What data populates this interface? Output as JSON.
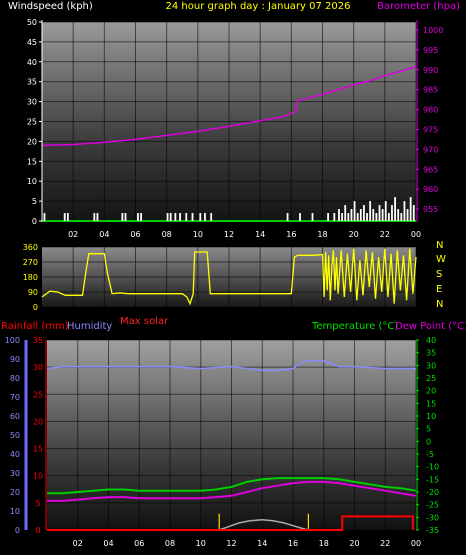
{
  "header": {
    "left_label": "Windspeed (kph)",
    "center_title": "24 hour graph day : January 07 2026",
    "right_label": "Barometer (hpa)"
  },
  "direction_letters": [
    "N",
    "W",
    "S",
    "E",
    "N"
  ],
  "bottom_header": {
    "rainfall": "Rainfall (mm)",
    "humidity": "Humidity",
    "max_solar": "Max solar",
    "temperature": "Temperature (°C)",
    "dew_point": "Dew Point (°C)"
  },
  "colors": {
    "wind": "#ffffff",
    "barometer": "#dd00dd",
    "direction": "#ffff00",
    "rain": "#ff0000",
    "humidity": "#8a8aff",
    "temperature": "#00cc00",
    "dewpoint": "#dd00dd",
    "solar": "#aaaaaa"
  },
  "chart_data": [
    {
      "type": "line",
      "id": "wind_baro",
      "xlabel": "",
      "x_ticks": [
        "02",
        "04",
        "06",
        "08",
        "10",
        "12",
        "14",
        "16",
        "18",
        "20",
        "22",
        "00"
      ],
      "xlim": [
        0,
        24
      ],
      "ylabel_left": "Windspeed (kph)",
      "ylim_left": [
        0,
        50
      ],
      "yticks_left": [
        0,
        5,
        10,
        15,
        20,
        25,
        30,
        35,
        40,
        45,
        50
      ],
      "ylabel_right": "Barometer (hpa)",
      "ylim_right": [
        952,
        1002
      ],
      "yticks_right": [
        955,
        960,
        965,
        970,
        975,
        980,
        985,
        990,
        995,
        1000
      ],
      "series": [
        {
          "name": "Windspeed (kph)",
          "kind": "bars",
          "x": [
            0.1,
            1.4,
            1.6,
            3.3,
            3.5,
            5.1,
            5.3,
            6.1,
            6.3,
            8.0,
            8.2,
            8.5,
            8.8,
            9.2,
            9.6,
            10.1,
            10.4,
            10.8,
            15.7,
            16.5,
            17.3,
            18.3,
            18.7,
            19.0,
            19.2,
            19.4,
            19.6,
            19.8,
            20.0,
            20.2,
            20.4,
            20.6,
            20.8,
            21.0,
            21.2,
            21.4,
            21.6,
            21.8,
            22.0,
            22.2,
            22.4,
            22.6,
            22.8,
            23.0,
            23.2,
            23.4,
            23.6,
            23.8
          ],
          "values": [
            2,
            2,
            2,
            2,
            2,
            2,
            2,
            2,
            2,
            2,
            2,
            2,
            2,
            2,
            2,
            2,
            2,
            2,
            2,
            2,
            2,
            2,
            2,
            3,
            2,
            4,
            2,
            3,
            5,
            2,
            3,
            4,
            2,
            5,
            3,
            2,
            4,
            3,
            5,
            2,
            4,
            6,
            3,
            2,
            5,
            3,
            6,
            4
          ]
        },
        {
          "name": "Barometer (hpa)",
          "kind": "line",
          "x": [
            0,
            2,
            4,
            6,
            8,
            10,
            12,
            14,
            15.5,
            16.3,
            16.4,
            18,
            20,
            21,
            22,
            23,
            24
          ],
          "values": [
            971.0,
            971.2,
            971.8,
            972.5,
            973.5,
            974.5,
            975.8,
            977.2,
            978.2,
            979.5,
            982.2,
            983.8,
            986.2,
            987.2,
            988.5,
            989.6,
            990.8
          ]
        }
      ]
    },
    {
      "type": "line",
      "id": "wind_direction",
      "xlabel": "",
      "x_ticks": [
        "02",
        "04",
        "06",
        "08",
        "10",
        "12",
        "14",
        "16",
        "18",
        "20",
        "22",
        "00"
      ],
      "xlim": [
        0,
        24
      ],
      "ylim": [
        0,
        360
      ],
      "yticks": [
        0,
        90,
        180,
        270,
        360
      ],
      "series": [
        {
          "name": "Wind direction",
          "x": [
            0,
            0.5,
            1.0,
            1.5,
            2.0,
            2.6,
            2.8,
            3.0,
            3.5,
            4.0,
            4.2,
            4.5,
            5.0,
            5.5,
            6.0,
            6.5,
            7.0,
            7.5,
            8.0,
            8.5,
            9.0,
            9.3,
            9.5,
            9.7,
            9.8,
            10.0,
            10.6,
            10.8,
            11.0,
            11.5,
            12.0,
            13.0,
            14.0,
            15.0,
            16.0,
            16.2,
            16.4,
            17.0,
            17.5,
            18.0,
            18.1,
            18.2,
            18.3,
            18.4,
            18.5,
            18.6,
            18.7,
            18.8,
            18.9,
            19.0,
            19.2,
            19.4,
            19.6,
            19.8,
            20.0,
            20.2,
            20.4,
            20.6,
            20.8,
            21.0,
            21.2,
            21.4,
            21.6,
            21.8,
            22.0,
            22.2,
            22.4,
            22.6,
            22.8,
            23.0,
            23.2,
            23.4,
            23.6,
            23.8,
            24.0
          ],
          "values": [
            60,
            95,
            90,
            70,
            70,
            70,
            200,
            320,
            320,
            320,
            200,
            80,
            85,
            80,
            80,
            80,
            80,
            80,
            80,
            80,
            80,
            60,
            20,
            80,
            330,
            330,
            330,
            80,
            80,
            80,
            80,
            80,
            80,
            80,
            80,
            300,
            310,
            310,
            310,
            315,
            60,
            330,
            100,
            310,
            40,
            250,
            340,
            100,
            300,
            80,
            340,
            60,
            320,
            90,
            350,
            40,
            280,
            70,
            340,
            120,
            330,
            50,
            300,
            90,
            350,
            60,
            320,
            20,
            340,
            100,
            310,
            40,
            350,
            80,
            300
          ]
        }
      ]
    },
    {
      "type": "line",
      "id": "temp_hum_rain",
      "xlabel": "",
      "x_ticks": [
        "02",
        "04",
        "06",
        "08",
        "10",
        "12",
        "14",
        "16",
        "18",
        "20",
        "22",
        "00"
      ],
      "xlim": [
        0,
        24
      ],
      "y_axes": [
        {
          "name": "Humidity",
          "ylim": [
            0,
            100
          ],
          "yticks": [
            0,
            10,
            20,
            30,
            40,
            50,
            60,
            70,
            80,
            90,
            100
          ]
        },
        {
          "name": "Rainfall (mm)",
          "ylim": [
            0,
            35
          ],
          "yticks": [
            0,
            5,
            10,
            15,
            20,
            25,
            30,
            35
          ]
        },
        {
          "name": "Temperature (°C)",
          "ylim": [
            -35,
            40
          ],
          "yticks": [
            -35,
            -30,
            -25,
            -20,
            -15,
            -10,
            -5,
            0,
            5,
            10,
            15,
            20,
            25,
            30,
            35,
            40
          ]
        }
      ],
      "series": [
        {
          "name": "Humidity",
          "axis": "Humidity",
          "x": [
            0,
            1,
            2,
            4,
            6,
            8,
            10,
            12,
            14,
            15,
            16,
            16.5,
            17,
            18,
            19,
            20,
            22,
            24
          ],
          "values": [
            85,
            86,
            86,
            86,
            86,
            86,
            85,
            86,
            84,
            84,
            85,
            88,
            89,
            89,
            86,
            86,
            85,
            85
          ]
        },
        {
          "name": "Temperature (°C)",
          "axis": "Temperature (°C)",
          "x": [
            0,
            1,
            2,
            3,
            4,
            5,
            6,
            7,
            8,
            9,
            10,
            11,
            12,
            13,
            14,
            15,
            16,
            17,
            18,
            19,
            20,
            21,
            22,
            23,
            24
          ],
          "values": [
            -20.5,
            -20.5,
            -20.0,
            -19.5,
            -19.0,
            -19.0,
            -19.5,
            -19.5,
            -19.5,
            -19.5,
            -19.5,
            -19.0,
            -18.0,
            -16.0,
            -15.0,
            -14.5,
            -14.5,
            -14.5,
            -14.5,
            -15.0,
            -16.0,
            -17.0,
            -18.0,
            -18.5,
            -19.5
          ]
        },
        {
          "name": "Dew Point (°C)",
          "axis": "Temperature (°C)",
          "x": [
            0,
            1,
            2,
            3,
            4,
            5,
            6,
            7,
            8,
            9,
            10,
            11,
            12,
            13,
            14,
            15,
            16,
            17,
            18,
            19,
            20,
            21,
            22,
            23,
            24
          ],
          "values": [
            -23.5,
            -23.5,
            -23.0,
            -22.5,
            -22.0,
            -22.0,
            -22.5,
            -22.5,
            -22.5,
            -22.5,
            -22.5,
            -22.0,
            -21.5,
            -20.0,
            -18.5,
            -17.5,
            -16.5,
            -16.0,
            -16.0,
            -16.5,
            -17.5,
            -18.5,
            -19.5,
            -20.5,
            -21.5
          ]
        },
        {
          "name": "Rainfall (mm)",
          "axis": "Rainfall (mm)",
          "x": [
            0,
            19.2,
            19.2,
            23.8,
            23.8
          ],
          "values": [
            0,
            0,
            2.5,
            2.5,
            0
          ]
        },
        {
          "name": "Max solar",
          "axis": "Rainfall (mm)",
          "x": [
            11.2,
            11.8,
            12.5,
            13.2,
            14.0,
            14.7,
            15.4,
            16.0,
            16.6,
            17.0
          ],
          "values": [
            0,
            0.6,
            1.3,
            1.7,
            1.9,
            1.7,
            1.3,
            0.8,
            0.3,
            0
          ]
        },
        {
          "name": "Solar markers",
          "axis": "Rainfall (mm)",
          "kind": "marks",
          "x": [
            11.2,
            17.0
          ],
          "values": [
            3,
            3
          ]
        }
      ]
    }
  ]
}
